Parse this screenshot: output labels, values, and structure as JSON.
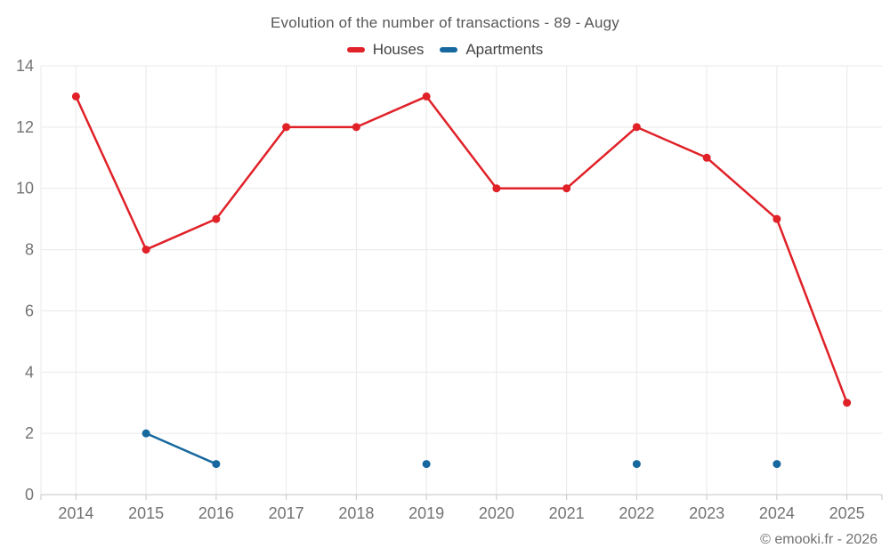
{
  "header": {
    "title": "Evolution of the number of transactions - 89 - Augy"
  },
  "legend": {
    "items": [
      {
        "label": "Houses",
        "color": "#e02128"
      },
      {
        "label": "Apartments",
        "color": "#17689e"
      }
    ]
  },
  "chart_data": {
    "type": "line",
    "title": "Evolution of the number of transactions - 89 - Augy",
    "x": [
      2014,
      2015,
      2016,
      2017,
      2018,
      2019,
      2020,
      2021,
      2022,
      2023,
      2024,
      2025
    ],
    "series": [
      {
        "name": "Houses",
        "color": "#e02128",
        "values": [
          13,
          8,
          9,
          12,
          12,
          13,
          10,
          10,
          12,
          11,
          9,
          3
        ]
      },
      {
        "name": "Apartments",
        "color": "#17689e",
        "values": [
          null,
          2,
          1,
          null,
          null,
          1,
          null,
          null,
          1,
          null,
          1,
          null
        ]
      }
    ],
    "xlabel": "",
    "ylabel": "",
    "ylim": [
      0,
      14
    ],
    "yticks": [
      0,
      2,
      4,
      6,
      8,
      10,
      12,
      14
    ],
    "grid": true,
    "legend_position": "top"
  },
  "footer": {
    "attribution": "© emooki.fr - 2026"
  }
}
